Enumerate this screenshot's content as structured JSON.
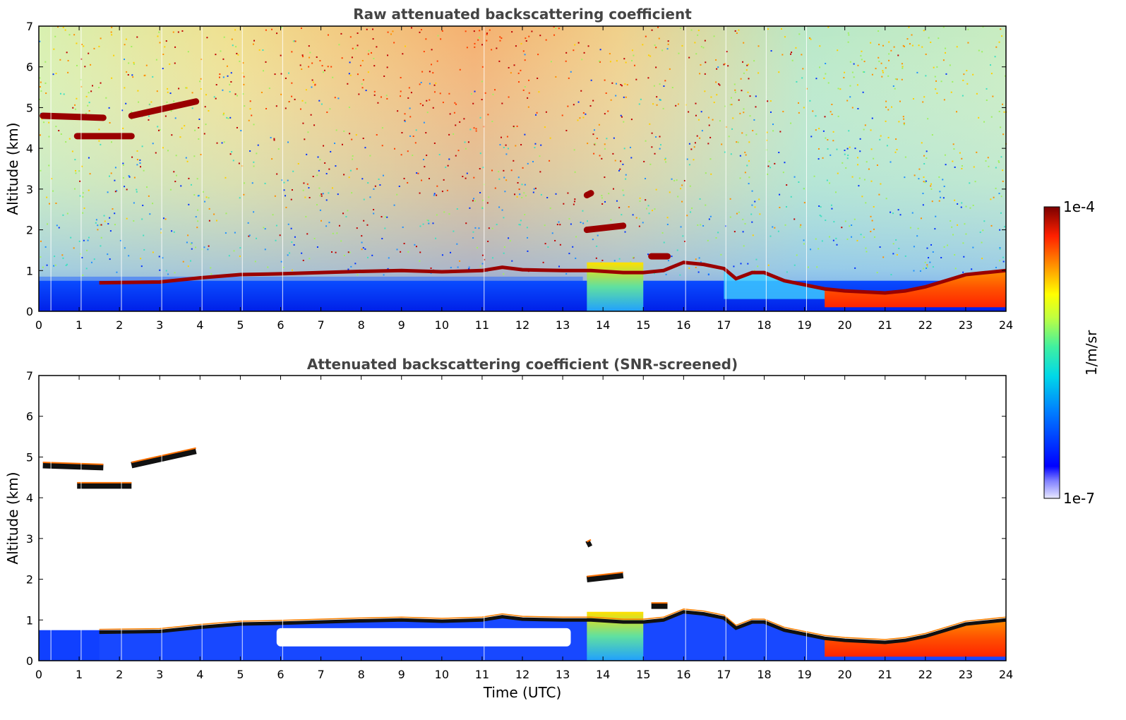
{
  "chart_data": [
    {
      "type": "heatmap",
      "title": "Raw attenuated backscattering coefficient",
      "xlabel": "",
      "ylabel": "Altitude (km)",
      "xlim": [
        0,
        24
      ],
      "ylim": [
        0,
        7
      ],
      "xticks": [
        "0",
        "1",
        "2",
        "3",
        "4",
        "5",
        "6",
        "7",
        "8",
        "9",
        "10",
        "11",
        "12",
        "13",
        "14",
        "15",
        "16",
        "17",
        "18",
        "19",
        "20",
        "21",
        "22",
        "23",
        "24"
      ],
      "yticks": [
        "0",
        "1",
        "2",
        "3",
        "4",
        "5",
        "6",
        "7"
      ],
      "cloud_layers": [
        {
          "x": [
            0.1,
            1.6
          ],
          "y": [
            4.8,
            4.75
          ]
        },
        {
          "x": [
            0.95,
            2.3
          ],
          "y": [
            4.3,
            4.3
          ]
        },
        {
          "x": [
            2.3,
            3.9
          ],
          "y": [
            4.8,
            5.15
          ]
        },
        {
          "x": [
            13.6,
            14.5
          ],
          "y": [
            2.0,
            2.1
          ]
        },
        {
          "x": [
            13.6,
            13.7
          ],
          "y": [
            2.85,
            2.9
          ]
        },
        {
          "x": [
            15.2,
            15.6
          ],
          "y": [
            1.35,
            1.35
          ]
        }
      ],
      "boundary_layer_top": {
        "x": [
          1.5,
          3,
          4,
          5,
          6,
          7,
          8,
          9,
          10,
          11,
          11.5,
          12,
          13,
          13.7,
          14.5,
          15,
          15.5,
          16,
          16.5,
          17,
          17.3,
          17.7,
          18,
          18.5,
          19,
          19.5,
          20,
          21,
          21.5,
          22,
          22.5,
          23,
          23.5,
          24
        ],
        "y": [
          0.7,
          0.72,
          0.82,
          0.9,
          0.92,
          0.95,
          0.98,
          1.0,
          0.97,
          1.0,
          1.08,
          1.02,
          1.0,
          1.0,
          0.95,
          0.95,
          1.0,
          1.2,
          1.15,
          1.05,
          0.8,
          0.95,
          0.95,
          0.75,
          0.65,
          0.55,
          0.5,
          0.45,
          0.5,
          0.6,
          0.75,
          0.9,
          0.95,
          1.0
        ]
      }
    },
    {
      "type": "heatmap",
      "title": "Attenuated backscattering coefficient (SNR-screened)",
      "xlabel": "Time (UTC)",
      "ylabel": "Altitude (km)",
      "xlim": [
        0,
        24
      ],
      "ylim": [
        0,
        7
      ],
      "xticks": [
        "0",
        "1",
        "2",
        "3",
        "4",
        "5",
        "6",
        "7",
        "8",
        "9",
        "10",
        "11",
        "12",
        "13",
        "14",
        "15",
        "16",
        "17",
        "18",
        "19",
        "20",
        "21",
        "22",
        "23",
        "24"
      ],
      "yticks": [
        "0",
        "1",
        "2",
        "3",
        "4",
        "5",
        "6",
        "7"
      ]
    }
  ],
  "colorbar": {
    "label": "1/m/sr",
    "max_label": "1e-4",
    "min_label": "1e-7",
    "scale": "log",
    "colors": [
      "#e8e8ff",
      "#0000ff",
      "#0090ff",
      "#00e0e0",
      "#80ff80",
      "#ffff00",
      "#ff9000",
      "#ff2000",
      "#800000"
    ]
  }
}
